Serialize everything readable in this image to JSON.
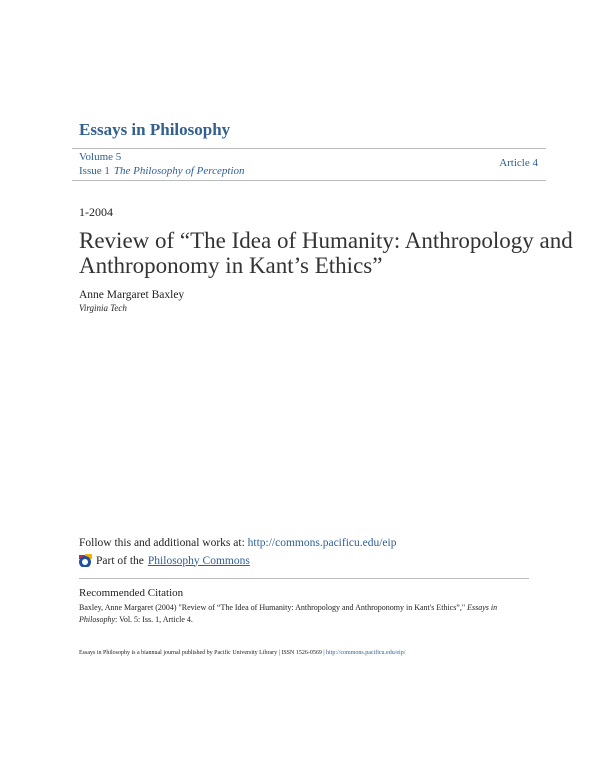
{
  "header": {
    "journal": "Essays in Philosophy",
    "volume": "Volume 5",
    "issue": "Issue 1",
    "issue_title": "The Philosophy of Perception",
    "article": "Article 4"
  },
  "date": "1-2004",
  "title": "Review of “The Idea of Humanity: Anthropology and Anthroponomy in Kant’s Ethics”",
  "author": "Anne Margaret Baxley",
  "institution": "Virginia Tech",
  "follow": {
    "text": "Follow this and additional works at:",
    "link": "http://commons.pacificu.edu/eip"
  },
  "part": {
    "text": "Part of the",
    "link": "Philosophy Commons",
    "icon": "bepress-commons-icon"
  },
  "citation": {
    "heading": "Recommended Citation",
    "authors": "Baxley, Anne Margaret (2004) \"",
    "title": "Review of “The Idea of Humanity: Anthropology and Anthroponomy in Kant's Ethics”",
    "sep": ",\" ",
    "journal": "Essays in Philosophy",
    "rest": ": Vol. 5: Iss. 1, Article 4."
  },
  "footer": {
    "text": "Essays in Philosophy is a biannual journal published by Pacific University Library | ISSN 1526-0569 |",
    "link": "http://commons.pacificu.edu/eip/"
  }
}
